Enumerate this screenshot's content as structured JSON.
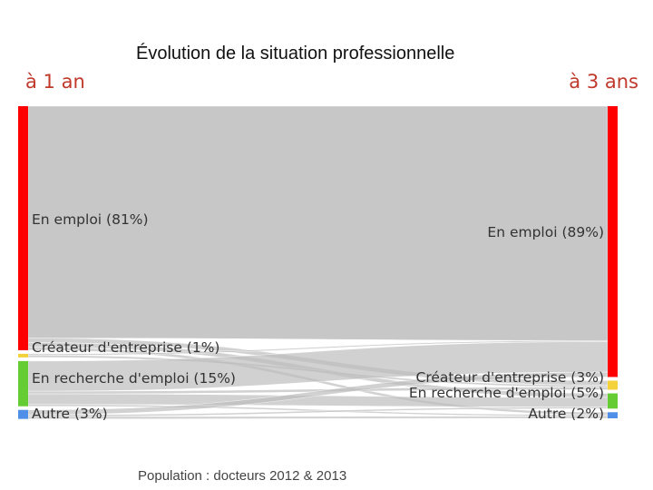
{
  "header": {
    "title": "Évolution de la situation professionnelle",
    "left_label": "à 1 an",
    "right_label": "à 3 ans"
  },
  "footer": {
    "text": "Population : docteurs 2012 & 2013"
  },
  "colors": {
    "emploi": "#ff0000",
    "createur": "#f4d23c",
    "recherche": "#66cc33",
    "autre": "#4f8fe8",
    "flow": "#bdbdbd",
    "accent": "#c0392b"
  },
  "chart_data": {
    "type": "sankey",
    "left_nodes": [
      {
        "id": "emploi",
        "label": "En emploi (81%)",
        "value": 81,
        "color": "#ff0000"
      },
      {
        "id": "createur",
        "label": "Créateur d'entreprise (1%)",
        "value": 1,
        "color": "#f4d23c"
      },
      {
        "id": "recherche",
        "label": "En recherche d'emploi (15%)",
        "value": 15,
        "color": "#66cc33"
      },
      {
        "id": "autre",
        "label": "Autre (3%)",
        "value": 3,
        "color": "#4f8fe8"
      }
    ],
    "right_nodes": [
      {
        "id": "emploi",
        "label": "En emploi (89%)",
        "value": 89,
        "color": "#ff0000"
      },
      {
        "id": "createur",
        "label": "Créateur d'entreprise (3%)",
        "value": 3,
        "color": "#f4d23c"
      },
      {
        "id": "recherche",
        "label": "En recherche d'emploi (5%)",
        "value": 5,
        "color": "#66cc33"
      },
      {
        "id": "autre",
        "label": "Autre (2%)",
        "value": 2,
        "color": "#4f8fe8"
      }
    ],
    "flows": [
      {
        "from": "emploi",
        "to": "emploi",
        "value": 77
      },
      {
        "from": "emploi",
        "to": "createur",
        "value": 1.5
      },
      {
        "from": "emploi",
        "to": "recherche",
        "value": 1.5
      },
      {
        "from": "emploi",
        "to": "autre",
        "value": 1
      },
      {
        "from": "createur",
        "to": "emploi",
        "value": 0.4
      },
      {
        "from": "createur",
        "to": "createur",
        "value": 0.6
      },
      {
        "from": "recherche",
        "to": "emploi",
        "value": 10
      },
      {
        "from": "recherche",
        "to": "createur",
        "value": 0.9
      },
      {
        "from": "recherche",
        "to": "recherche",
        "value": 3.5
      },
      {
        "from": "recherche",
        "to": "autre",
        "value": 0.6
      },
      {
        "from": "autre",
        "to": "emploi",
        "value": 1.6
      },
      {
        "from": "autre",
        "to": "recherche",
        "value": 0.6
      },
      {
        "from": "autre",
        "to": "autre",
        "value": 0.8
      }
    ]
  }
}
